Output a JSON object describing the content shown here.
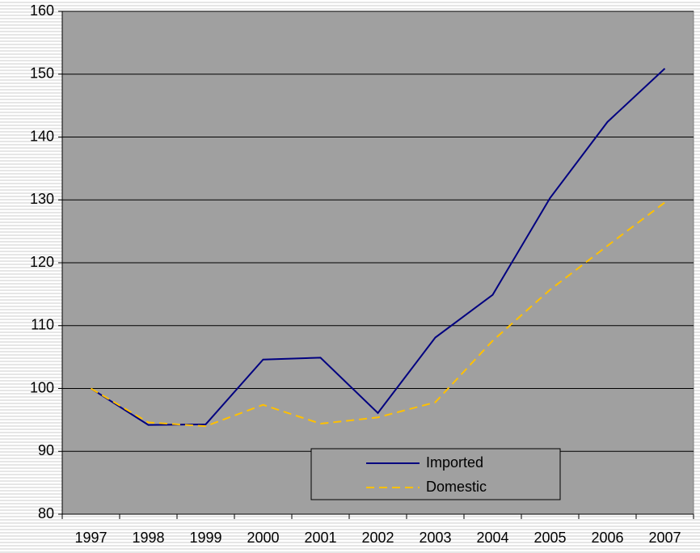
{
  "chart_data": {
    "type": "line",
    "categories": [
      "1997",
      "1998",
      "1999",
      "2000",
      "2001",
      "2002",
      "2003",
      "2004",
      "2005",
      "2006",
      "2007"
    ],
    "series": [
      {
        "name": "Imported",
        "color": "#000080",
        "dash": false,
        "values": [
          100,
          94.2,
          94.3,
          104.6,
          104.9,
          96.1,
          108.1,
          114.9,
          130.3,
          142.4,
          150.9
        ]
      },
      {
        "name": "Domestic",
        "color": "#ffc000",
        "dash": true,
        "values": [
          100,
          94.6,
          94.0,
          97.4,
          94.4,
          95.4,
          97.8,
          107.6,
          115.7,
          122.7,
          129.6
        ]
      }
    ],
    "ylim": [
      80,
      160
    ],
    "yticks": [
      80,
      90,
      100,
      110,
      120,
      130,
      140,
      150,
      160
    ],
    "grid": true
  }
}
